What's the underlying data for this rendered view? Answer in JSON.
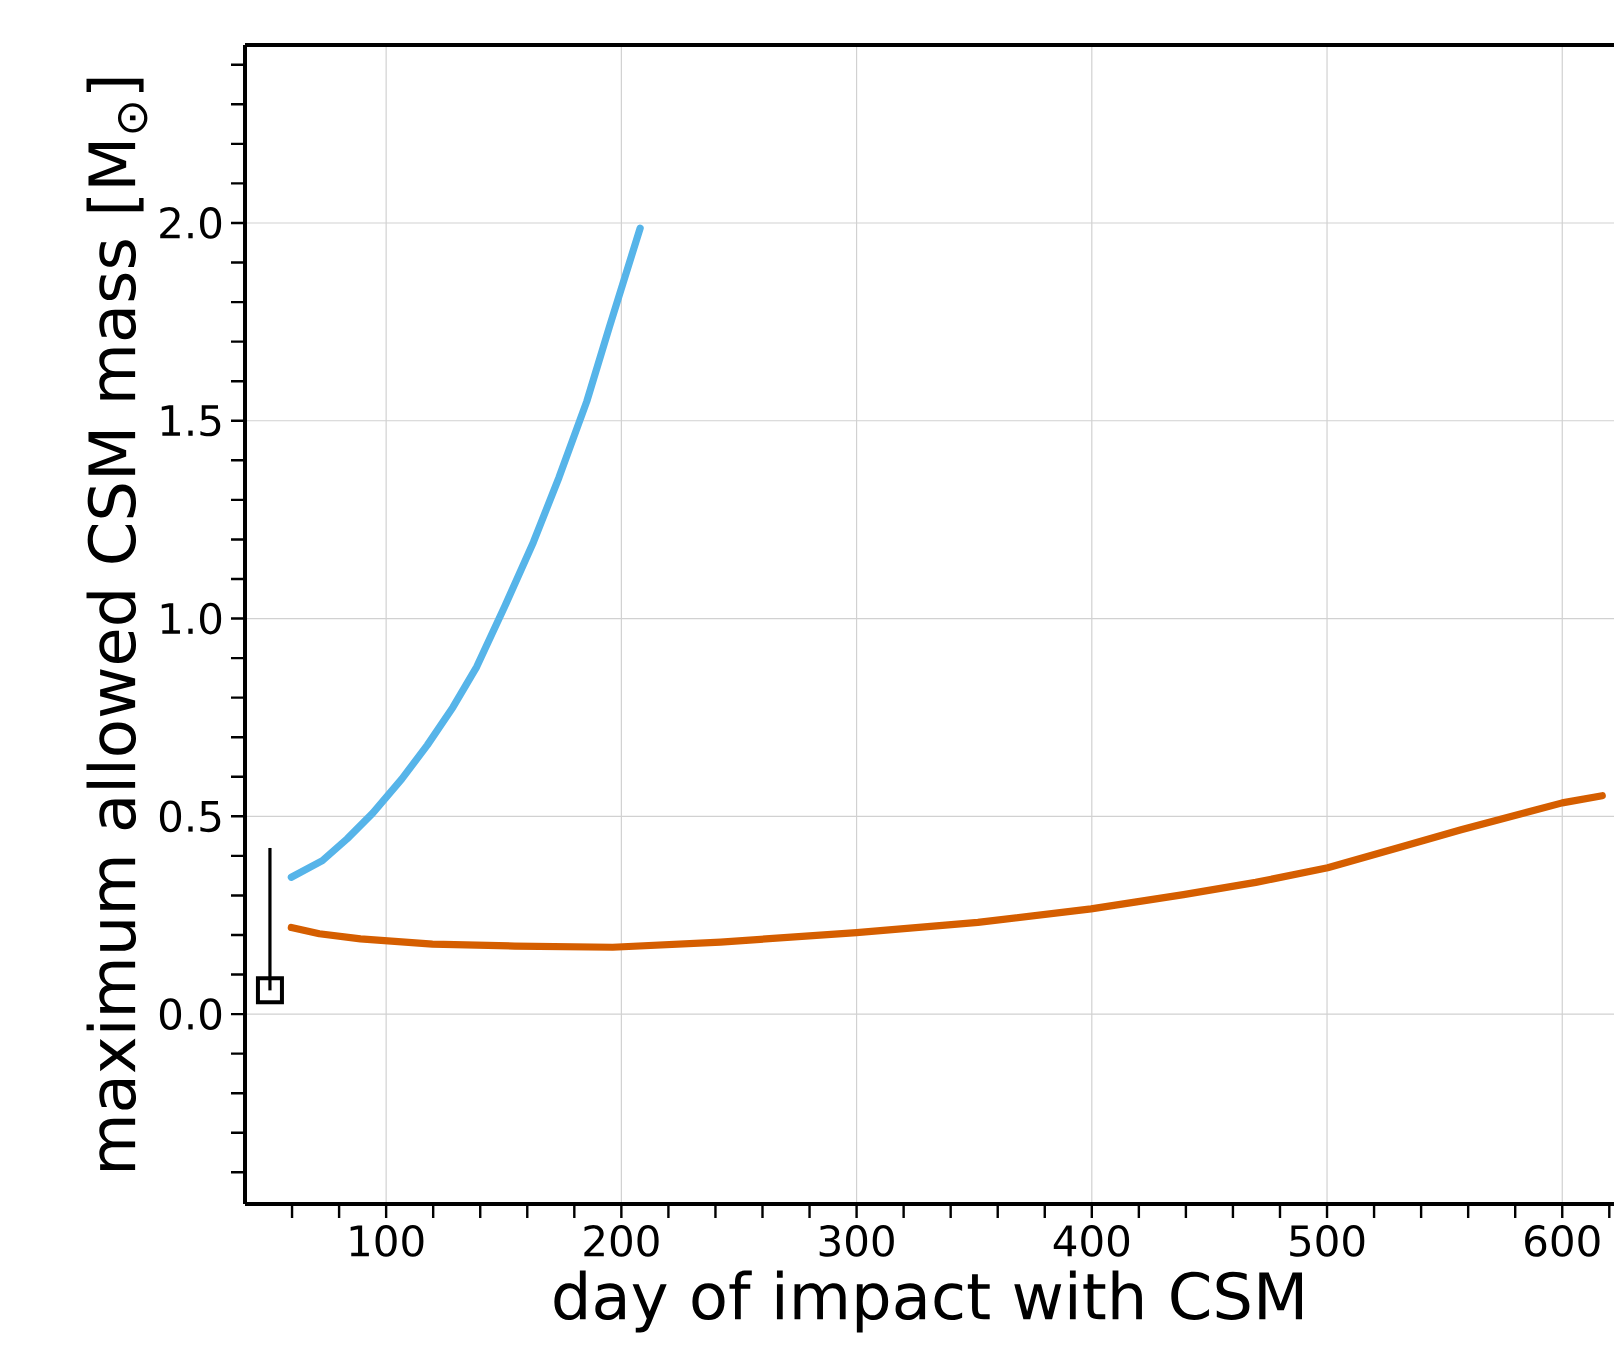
{
  "chart_data": {
    "type": "line",
    "xlabel": "day of impact with CSM",
    "ylabel": "maximum allowed CSM mass [M$_{⊙}$]",
    "xlim": [
      40,
      622
    ],
    "ylim": [
      -0.48,
      2.45
    ],
    "xticks": [
      {
        "value": 60,
        "label": null
      },
      {
        "value": 80,
        "label": null
      },
      100,
      {
        "value": 120,
        "label": null
      },
      {
        "value": 140,
        "label": null
      },
      {
        "value": 160,
        "label": null
      },
      {
        "value": 180,
        "label": null
      },
      200,
      {
        "value": 220,
        "label": null
      },
      {
        "value": 240,
        "label": null
      },
      {
        "value": 260,
        "label": null
      },
      {
        "value": 280,
        "label": null
      },
      300,
      {
        "value": 320,
        "label": null
      },
      {
        "value": 340,
        "label": null
      },
      {
        "value": 360,
        "label": null
      },
      {
        "value": 380,
        "label": null
      },
      400,
      {
        "value": 420,
        "label": null
      },
      {
        "value": 440,
        "label": null
      },
      {
        "value": 460,
        "label": null
      },
      {
        "value": 480,
        "label": null
      },
      500,
      {
        "value": 520,
        "label": null
      },
      {
        "value": 540,
        "label": null
      },
      {
        "value": 560,
        "label": null
      },
      {
        "value": 580,
        "label": null
      },
      600,
      {
        "value": 620,
        "label": null
      }
    ],
    "yticks": [
      {
        "value": -0.4,
        "label": null
      },
      {
        "value": -0.3,
        "label": null
      },
      {
        "value": -0.2,
        "label": null
      },
      {
        "value": -0.1,
        "label": null
      },
      {
        "value": 0,
        "label": "0.0"
      },
      {
        "value": 0.1,
        "label": null
      },
      {
        "value": 0.2,
        "label": null
      },
      {
        "value": 0.3,
        "label": null
      },
      {
        "value": 0.4,
        "label": null
      },
      0.5,
      {
        "value": 0.6,
        "label": null
      },
      {
        "value": 0.7,
        "label": null
      },
      {
        "value": 0.8,
        "label": null
      },
      {
        "value": 0.9,
        "label": null
      },
      {
        "value": 1,
        "label": "1.0"
      },
      {
        "value": 1.1,
        "label": null
      },
      {
        "value": 1.2,
        "label": null
      },
      {
        "value": 1.3,
        "label": null
      },
      {
        "value": 1.4,
        "label": null
      },
      1.5,
      {
        "value": 1.6,
        "label": null
      },
      {
        "value": 1.7,
        "label": null
      },
      {
        "value": 1.8,
        "label": null
      },
      {
        "value": 1.9,
        "label": null
      },
      {
        "value": 2,
        "label": "2.0"
      },
      {
        "value": 2.1,
        "label": null
      },
      {
        "value": 2.2,
        "label": null
      },
      {
        "value": 2.3,
        "label": null
      },
      {
        "value": 2.4,
        "label": null
      }
    ],
    "grid": true,
    "series": [
      {
        "color": "#56b4e9",
        "x": [
          59.7,
          72.9,
          83.4,
          94.3,
          106.6,
          117.5,
          128.4,
          138.5,
          150.3,
          162.6,
          173.5,
          185.3,
          194.9,
          208
        ],
        "values": [
          0.346,
          0.388,
          0.443,
          0.508,
          0.594,
          0.68,
          0.776,
          0.878,
          1.029,
          1.193,
          1.357,
          1.549,
          1.737,
          1.987
        ]
      },
      {
        "color": "#d55e00",
        "x": [
          59.7,
          71.6,
          89.1,
          119.7,
          154.7,
          196.3,
          242.2,
          300,
          351.6,
          399.7,
          439,
          469.7,
          500.3,
          531,
          557,
          583.4,
          600,
          617
        ],
        "values": [
          0.219,
          0.203,
          0.19,
          0.177,
          0.172,
          0.169,
          0.182,
          0.206,
          0.232,
          0.266,
          0.302,
          0.333,
          0.37,
          0.422,
          0.466,
          0.508,
          0.534,
          0.552
        ]
      },
      {
        "type": "scatter",
        "color": "#000000",
        "marker": "square",
        "x": [
          50.6
        ],
        "values": [
          0.06
        ],
        "errors": [
          [
            0.06,
            0.42
          ]
        ]
      }
    ]
  }
}
